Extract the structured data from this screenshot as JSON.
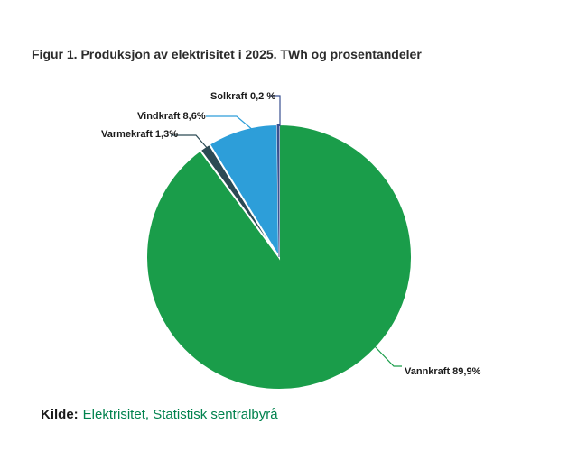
{
  "title": "Figur 1. Produksjon av elektrisitet i 2025. TWh og prosentandeler",
  "chart_data": {
    "type": "pie",
    "title": "Figur 1. Produksjon av elektrisitet i 2025. TWh og prosentandeler",
    "unit": "percent",
    "clockwise_from_top": true,
    "slices": [
      {
        "name": "Vannkraft",
        "value": 89.9,
        "label": "Vannkraft 89,9%",
        "color": "#1a9d4a"
      },
      {
        "name": "Varmekraft",
        "value": 1.3,
        "label": "Varmekraft 1,3%",
        "color": "#2c4a54"
      },
      {
        "name": "Vindkraft",
        "value": 8.6,
        "label": "Vindkraft 8,6%",
        "color": "#2d9ed9"
      },
      {
        "name": "Solkraft",
        "value": 0.2,
        "label": "Solkraft 0,2 %",
        "color": "#3a5191"
      }
    ],
    "legend_position": "none",
    "labels_as_callouts": true
  },
  "footer": {
    "kilde_label": "Kilde:",
    "source": "Elektrisitet, Statistisk sentralbyrå",
    "source_color": "#00824d"
  }
}
